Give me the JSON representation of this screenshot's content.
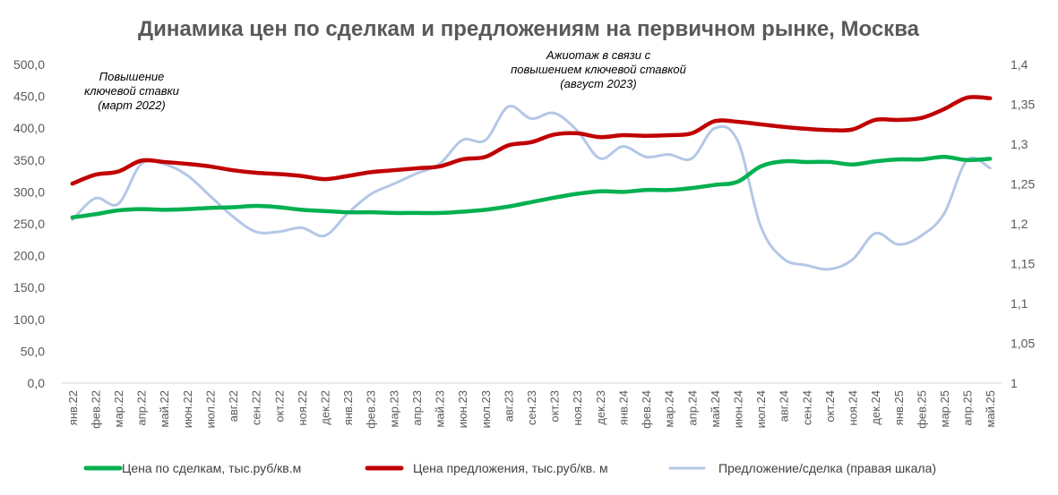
{
  "chart_data": {
    "type": "line",
    "title": "Динамика цен по сделкам и предложениям на первичном рынке, Москва",
    "xlabel": "",
    "ylabel": "",
    "ylim": [
      0,
      500
    ],
    "y2lim": [
      1,
      1.4
    ],
    "yticks": [
      "0,0",
      "50,0",
      "100,0",
      "150,0",
      "200,0",
      "250,0",
      "300,0",
      "350,0",
      "400,0",
      "450,0",
      "500,0"
    ],
    "y2ticks": [
      "1",
      "1,05",
      "1,1",
      "1,15",
      "1,2",
      "1,25",
      "1,3",
      "1,35",
      "1,4"
    ],
    "grid": false,
    "legend_position": "bottom",
    "categories": [
      "янв.22",
      "фев.22",
      "мар.22",
      "апр.22",
      "май.22",
      "июн.22",
      "июл.22",
      "авг.22",
      "сен.22",
      "окт.22",
      "ноя.22",
      "дек.22",
      "янв.23",
      "фев.23",
      "мар.23",
      "апр.23",
      "май.23",
      "июн.23",
      "июл.23",
      "авг.23",
      "сен.23",
      "окт.23",
      "ноя.23",
      "дек.23",
      "янв.24",
      "фев.24",
      "мар.24",
      "апр.24",
      "май.24",
      "июн.24",
      "июл.24",
      "авг.24",
      "сен.24",
      "окт.24",
      "ноя.24",
      "дек.24",
      "янв.25",
      "фев.25",
      "мар.25",
      "апр.25",
      "май.25"
    ],
    "series": [
      {
        "name": "Цена по сделкам, тыс.руб/кв.м",
        "axis": "left",
        "color": "#00B050",
        "values": [
          260,
          265,
          271,
          273,
          272,
          273,
          275,
          276,
          278,
          276,
          272,
          270,
          268,
          268,
          267,
          267,
          267,
          269,
          272,
          277,
          284,
          291,
          297,
          301,
          300,
          303,
          303,
          306,
          311,
          316,
          340,
          348,
          347,
          347,
          343,
          348,
          351,
          351,
          355,
          350,
          352
        ]
      },
      {
        "name": "Цена предложения, тыс.руб/кв. м",
        "axis": "left",
        "color": "#C00000",
        "values": [
          313,
          327,
          332,
          349,
          347,
          344,
          340,
          334,
          330,
          328,
          325,
          320,
          325,
          331,
          334,
          337,
          340,
          351,
          355,
          373,
          378,
          390,
          392,
          386,
          389,
          388,
          389,
          392,
          411,
          410,
          406,
          402,
          399,
          397,
          398,
          413,
          413,
          416,
          430,
          448,
          447
        ]
      },
      {
        "name": "Предложение/сделка (правая шкала)",
        "axis": "right",
        "color": "#B4C7E7",
        "values": [
          1.205,
          1.232,
          1.225,
          1.275,
          1.275,
          1.261,
          1.235,
          1.209,
          1.19,
          1.19,
          1.195,
          1.185,
          1.213,
          1.237,
          1.25,
          1.263,
          1.275,
          1.305,
          1.305,
          1.347,
          1.332,
          1.339,
          1.317,
          1.282,
          1.297,
          1.284,
          1.287,
          1.282,
          1.32,
          1.304,
          1.197,
          1.156,
          1.148,
          1.143,
          1.155,
          1.188,
          1.174,
          1.185,
          1.213,
          1.28,
          1.27
        ]
      }
    ],
    "annotations": [
      {
        "lines": [
          "Повышение",
          "ключевой ставки",
          "(март 2022)"
        ],
        "category": "мар.22"
      },
      {
        "lines": [
          "Ажиотаж в связи с",
          "повышением ключевой ставкой",
          "(август 2023)"
        ],
        "category": "авг.23"
      }
    ]
  }
}
